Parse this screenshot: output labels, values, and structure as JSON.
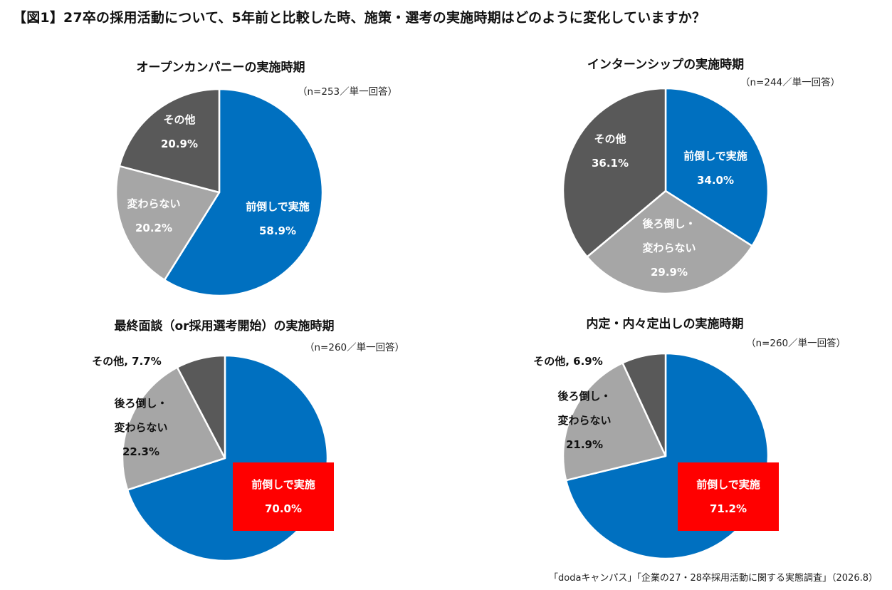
{
  "title": "【図1】27卒の採用活動について、5年前と比較した時、施策・選考の実施時期はどのように変化していますか？",
  "source": "「dodaキャンパス」「企業の27・28卒採用活動に関する実態調査」（2026.8）",
  "colors": {
    "blue": "#0070c0",
    "light_gray": "#a6a6a6",
    "dark_gray": "#595959",
    "highlight": "#ff0000"
  },
  "chart_data": [
    {
      "type": "pie",
      "title": "オープンカンパニーの実施時期",
      "note": "（n=253／単一回答）",
      "slices": [
        {
          "label": "前倒しで実施",
          "value": 58.9,
          "value_text": "58.9%",
          "color": "#0070c0"
        },
        {
          "label": "変わらない",
          "value": 20.2,
          "value_text": "20.2%",
          "color": "#a6a6a6"
        },
        {
          "label": "その他",
          "value": 20.9,
          "value_text": "20.9%",
          "color": "#595959"
        }
      ]
    },
    {
      "type": "pie",
      "title": "インターンシップの実施時期",
      "note": "（n=244／単一回答）",
      "slices": [
        {
          "label": "前倒しで実施",
          "value": 34.0,
          "value_text": "34.0%",
          "color": "#0070c0"
        },
        {
          "label": "後ろ倒し・\n変わらない",
          "value": 29.9,
          "value_text": "29.9%",
          "color": "#a6a6a6"
        },
        {
          "label": "その他",
          "value": 36.1,
          "value_text": "36.1%",
          "color": "#595959"
        }
      ]
    },
    {
      "type": "pie",
      "title": "最終面談（or採用選考開始）の実施時期",
      "note": "（n=260／単一回答）",
      "slices": [
        {
          "label": "前倒しで実施",
          "value": 70.0,
          "value_text": "70.0%",
          "color": "#0070c0"
        },
        {
          "label": "後ろ倒し・\n変わらない",
          "value": 22.3,
          "value_text": "22.3%",
          "color": "#a6a6a6"
        },
        {
          "label": "その他",
          "value": 7.7,
          "value_text": "その他, 7.7%",
          "color": "#595959"
        }
      ]
    },
    {
      "type": "pie",
      "title": "内定・内々定出しの実施時期",
      "note": "（n=260／単一回答）",
      "slices": [
        {
          "label": "前倒しで実施",
          "value": 71.2,
          "value_text": "71.2%",
          "color": "#0070c0"
        },
        {
          "label": "後ろ倒し・\n変わらない",
          "value": 21.9,
          "value_text": "21.9%",
          "color": "#a6a6a6"
        },
        {
          "label": "その他",
          "value": 6.9,
          "value_text": "その他, 6.9%",
          "color": "#595959"
        }
      ]
    }
  ]
}
